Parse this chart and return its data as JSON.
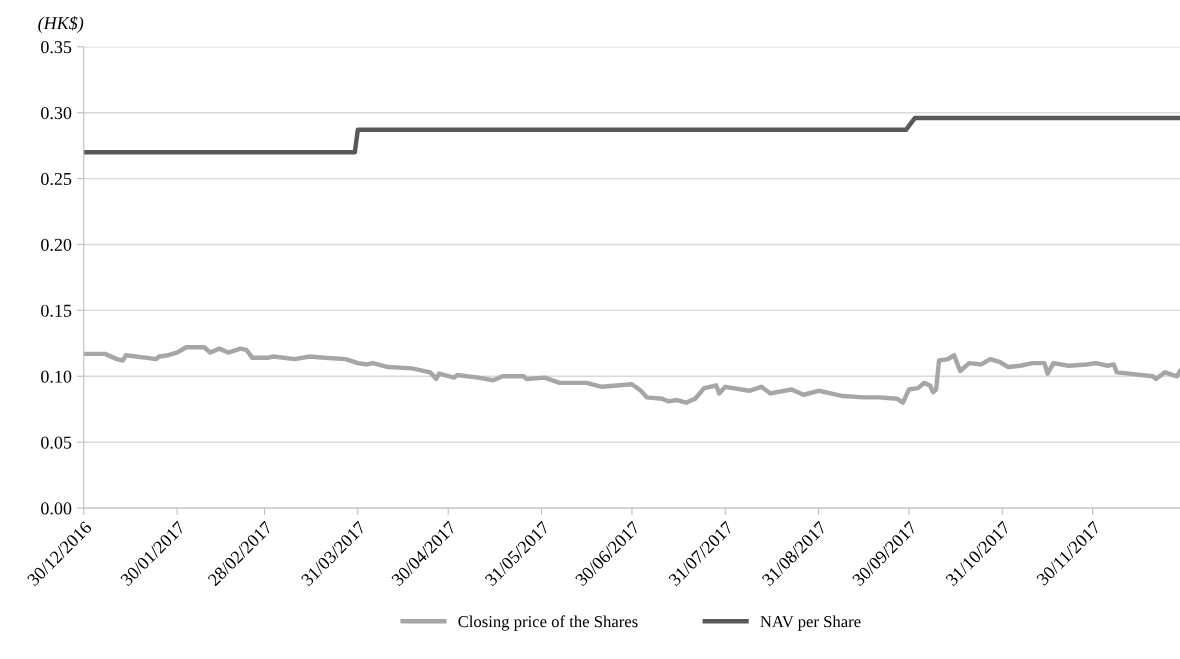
{
  "chart_data": {
    "type": "line",
    "ylabel": "(HK$)",
    "xlim": [
      "2016-12-30",
      "2017-12-29"
    ],
    "xticks": [
      {
        "value": "2016-12-30",
        "label": "30/12/2016"
      },
      {
        "value": "2017-01-30",
        "label": "30/01/2017"
      },
      {
        "value": "2017-02-28",
        "label": "28/02/2017"
      },
      {
        "value": "2017-03-31",
        "label": "31/03/2017"
      },
      {
        "value": "2017-04-30",
        "label": "30/04/2017"
      },
      {
        "value": "2017-05-31",
        "label": "31/05/2017"
      },
      {
        "value": "2017-06-30",
        "label": "30/06/2017"
      },
      {
        "value": "2017-07-31",
        "label": "31/07/2017"
      },
      {
        "value": "2017-08-31",
        "label": "31/08/2017"
      },
      {
        "value": "2017-09-30",
        "label": "30/09/2017"
      },
      {
        "value": "2017-10-31",
        "label": "31/10/2017"
      },
      {
        "value": "2017-11-30",
        "label": "30/11/2017"
      }
    ],
    "ylim": [
      0,
      0.35
    ],
    "yticks": [
      {
        "value": 0,
        "label": "0.00"
      },
      {
        "value": 0.05,
        "label": "0.05"
      },
      {
        "value": 0.1,
        "label": "0.10"
      },
      {
        "value": 0.15,
        "label": "0.15"
      },
      {
        "value": 0.2,
        "label": "0.20"
      },
      {
        "value": 0.25,
        "label": "0.25"
      },
      {
        "value": 0.3,
        "label": "0.30"
      },
      {
        "value": 0.35,
        "label": "0.35"
      }
    ],
    "grid": "y",
    "legend": "bottom",
    "marker": "none",
    "line_style": "solid",
    "series": [
      {
        "name": "Closing price of the Shares",
        "color": "#a6a6a6",
        "x": [
          "2016-12-30",
          "2017-01-06",
          "2017-01-10",
          "2017-01-12",
          "2017-01-13",
          "2017-01-20",
          "2017-01-23",
          "2017-01-24",
          "2017-01-27",
          "2017-01-30",
          "2017-02-02",
          "2017-02-08",
          "2017-02-10",
          "2017-02-13",
          "2017-02-16",
          "2017-02-20",
          "2017-02-22",
          "2017-02-24",
          "2017-03-01",
          "2017-03-03",
          "2017-03-10",
          "2017-03-15",
          "2017-03-20",
          "2017-03-27",
          "2017-03-31",
          "2017-04-03",
          "2017-04-05",
          "2017-04-10",
          "2017-04-18",
          "2017-04-24",
          "2017-04-26",
          "2017-04-27",
          "2017-05-02",
          "2017-05-03",
          "2017-05-10",
          "2017-05-15",
          "2017-05-18",
          "2017-05-25",
          "2017-05-26",
          "2017-06-01",
          "2017-06-06",
          "2017-06-15",
          "2017-06-20",
          "2017-06-30",
          "2017-07-03",
          "2017-07-05",
          "2017-07-10",
          "2017-07-12",
          "2017-07-15",
          "2017-07-18",
          "2017-07-21",
          "2017-07-24",
          "2017-07-28",
          "2017-07-29",
          "2017-07-31",
          "2017-08-08",
          "2017-08-12",
          "2017-08-15",
          "2017-08-22",
          "2017-08-26",
          "2017-08-31",
          "2017-09-04",
          "2017-09-08",
          "2017-09-15",
          "2017-09-20",
          "2017-09-26",
          "2017-09-28",
          "2017-09-30",
          "2017-10-03",
          "2017-10-05",
          "2017-10-07",
          "2017-10-08",
          "2017-10-09",
          "2017-10-10",
          "2017-10-13",
          "2017-10-15",
          "2017-10-17",
          "2017-10-20",
          "2017-10-24",
          "2017-10-27",
          "2017-10-30",
          "2017-11-02",
          "2017-11-06",
          "2017-11-10",
          "2017-11-14",
          "2017-11-15",
          "2017-11-17",
          "2017-11-22",
          "2017-11-28",
          "2017-12-01",
          "2017-12-05",
          "2017-12-07",
          "2017-12-08",
          "2017-12-12",
          "2017-12-16",
          "2017-12-20",
          "2017-12-21",
          "2017-12-24",
          "2017-12-28",
          "2017-12-29"
        ],
        "values": [
          0.117,
          0.117,
          0.113,
          0.112,
          0.116,
          0.114,
          0.113,
          0.115,
          0.116,
          0.118,
          0.122,
          0.122,
          0.118,
          0.121,
          0.118,
          0.121,
          0.12,
          0.114,
          0.114,
          0.115,
          0.113,
          0.115,
          0.114,
          0.113,
          0.11,
          0.109,
          0.11,
          0.107,
          0.106,
          0.103,
          0.098,
          0.102,
          0.099,
          0.101,
          0.099,
          0.097,
          0.1,
          0.1,
          0.098,
          0.099,
          0.095,
          0.095,
          0.092,
          0.094,
          0.089,
          0.084,
          0.083,
          0.081,
          0.082,
          0.08,
          0.083,
          0.091,
          0.093,
          0.087,
          0.092,
          0.089,
          0.092,
          0.087,
          0.09,
          0.086,
          0.089,
          0.087,
          0.085,
          0.084,
          0.084,
          0.083,
          0.08,
          0.09,
          0.091,
          0.095,
          0.093,
          0.088,
          0.09,
          0.112,
          0.113,
          0.116,
          0.104,
          0.11,
          0.109,
          0.113,
          0.111,
          0.107,
          0.108,
          0.11,
          0.11,
          0.102,
          0.11,
          0.108,
          0.109,
          0.11,
          0.108,
          0.109,
          0.103,
          0.102,
          0.101,
          0.1,
          0.098,
          0.103,
          0.1,
          0.104
        ]
      },
      {
        "name": "NAV per Share",
        "color": "#595959",
        "x": [
          "2016-12-30",
          "2017-03-30",
          "2017-03-31",
          "2017-09-29",
          "2017-10-02",
          "2017-12-29"
        ],
        "values": [
          0.27,
          0.27,
          0.287,
          0.287,
          0.296,
          0.296
        ]
      }
    ]
  }
}
